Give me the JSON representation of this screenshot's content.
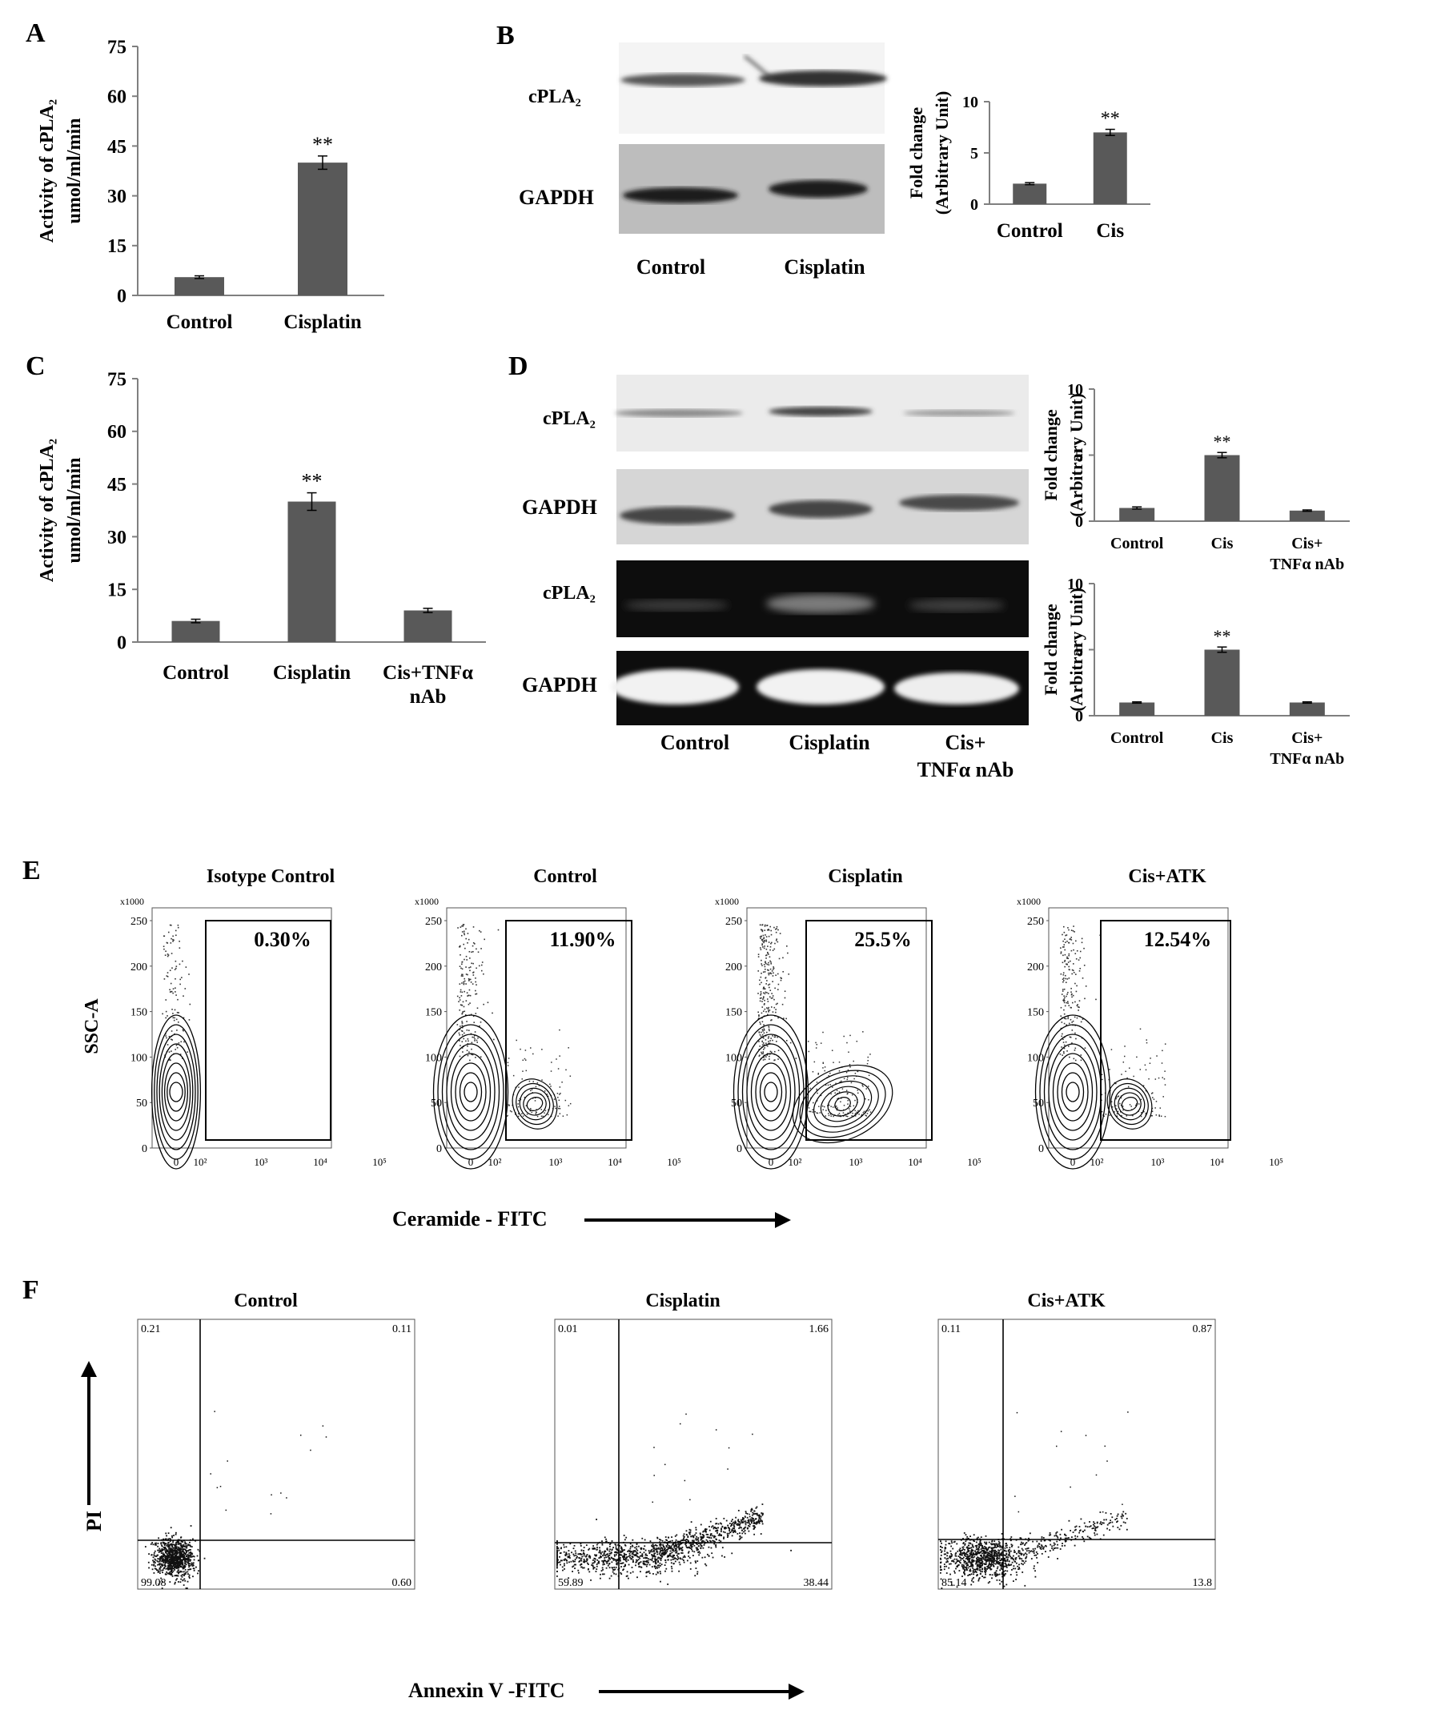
{
  "panels": {
    "A": {
      "letter": "A"
    },
    "B": {
      "letter": "B"
    },
    "C": {
      "letter": "C"
    },
    "D": {
      "letter": "D"
    },
    "E": {
      "letter": "E"
    },
    "F": {
      "letter": "F"
    }
  },
  "colors": {
    "bar": "#595959",
    "axis": "#7f7f7f"
  },
  "blots": {
    "b": {
      "row_labels": [
        "cPLA₂",
        "GAPDH"
      ],
      "lane_labels": [
        "Control",
        "Cisplatin"
      ]
    },
    "d": {
      "row_labels": [
        "cPLA₂",
        "GAPDH",
        "cPLA₂",
        "GAPDH"
      ],
      "lane_labels": [
        "Control",
        "Cisplatin",
        "Cis+",
        "TNFα nAb"
      ]
    }
  },
  "chart_data": [
    {
      "id": "A",
      "type": "bar",
      "ylabel_line1": "Activity of cPLA₂",
      "ylabel_line2": "umol/ml/min",
      "ylim": [
        0,
        75
      ],
      "yticks": [
        0,
        15,
        30,
        45,
        60,
        75
      ],
      "categories": [
        "Control",
        "Cisplatin"
      ],
      "values": [
        5.5,
        40
      ],
      "errors": [
        0.4,
        2
      ],
      "annotations": [
        "",
        "**"
      ]
    },
    {
      "id": "B",
      "type": "bar",
      "ylabel_line1": "Fold change",
      "ylabel_line2": "(Arbitrary Unit)",
      "ylim": [
        0,
        10
      ],
      "yticks": [
        0,
        5,
        10
      ],
      "categories": [
        "Control",
        "Cis"
      ],
      "values": [
        2,
        7
      ],
      "errors": [
        0.1,
        0.3
      ],
      "annotations": [
        "",
        "**"
      ]
    },
    {
      "id": "C",
      "type": "bar",
      "ylabel_line1": "Activity of cPLA₂",
      "ylabel_line2": "umol/ml/min",
      "ylim": [
        0,
        75
      ],
      "yticks": [
        0,
        15,
        30,
        45,
        60,
        75
      ],
      "categories": [
        "Control",
        "Cisplatin",
        "Cis+TNFα nAb"
      ],
      "category_lines": [
        [
          "Control"
        ],
        [
          "Cisplatin"
        ],
        [
          "Cis+TNFα",
          "nAb"
        ]
      ],
      "values": [
        6,
        40,
        9
      ],
      "errors": [
        0.5,
        2.5,
        0.6
      ],
      "annotations": [
        "",
        "**",
        ""
      ]
    },
    {
      "id": "D1",
      "type": "bar",
      "ylabel_line1": "Fold change",
      "ylabel_line2": "(Arbitrary Unit)",
      "ylim": [
        0,
        10
      ],
      "yticks": [
        0,
        5,
        10
      ],
      "categories": [
        "Control",
        "Cis",
        "Cis+ TNFα nAb"
      ],
      "category_lines": [
        [
          "Control"
        ],
        [
          "Cis"
        ],
        [
          "Cis+",
          "TNFα nAb"
        ]
      ],
      "values": [
        1,
        5,
        0.8
      ],
      "errors": [
        0.08,
        0.2,
        0.05
      ],
      "annotations": [
        "",
        "**",
        ""
      ]
    },
    {
      "id": "D2",
      "type": "bar",
      "ylabel_line1": "Fold change",
      "ylabel_line2": "(Arbitrary Unit)",
      "ylim": [
        0,
        10
      ],
      "yticks": [
        0,
        5,
        10
      ],
      "categories": [
        "Control",
        "Cis",
        "Cis+ TNFα nAb"
      ],
      "category_lines": [
        [
          "Control"
        ],
        [
          "Cis"
        ],
        [
          "Cis+",
          "TNFα nAb"
        ]
      ],
      "values": [
        1,
        5,
        1
      ],
      "errors": [
        0.05,
        0.2,
        0.05
      ],
      "annotations": [
        "",
        "**",
        ""
      ]
    }
  ],
  "flow_e": {
    "ylabel": "SSC-A",
    "xlabel": "Ceramide - FITC",
    "scale_label": "x1000",
    "yticks": [
      "0",
      "50",
      "100",
      "150",
      "200",
      "250"
    ],
    "xticks": [
      "0",
      "10²",
      "10³",
      "10⁴",
      "10⁵"
    ],
    "plots": [
      {
        "title": "Isotype Control",
        "gate_percent": "0.30%"
      },
      {
        "title": "Control",
        "gate_percent": "11.90%"
      },
      {
        "title": "Cisplatin",
        "gate_percent": "25.5%"
      },
      {
        "title": "Cis+ATK",
        "gate_percent": "12.54%"
      }
    ]
  },
  "flow_f": {
    "ylabel": "PI",
    "xlabel": "Annexin V -FITC",
    "plots": [
      {
        "title": "Control",
        "q_upper_left": "0.21",
        "q_upper_right": "0.11",
        "q_lower_left": "99.08",
        "q_lower_right": "0.60"
      },
      {
        "title": "Cisplatin",
        "q_upper_left": "0.01",
        "q_upper_right": "1.66",
        "q_lower_left": "59.89",
        "q_lower_right": "38.44"
      },
      {
        "title": "Cis+ATK",
        "q_upper_left": "0.11",
        "q_upper_right": "0.87",
        "q_lower_left": "85.14",
        "q_lower_right": "13.8"
      }
    ]
  }
}
